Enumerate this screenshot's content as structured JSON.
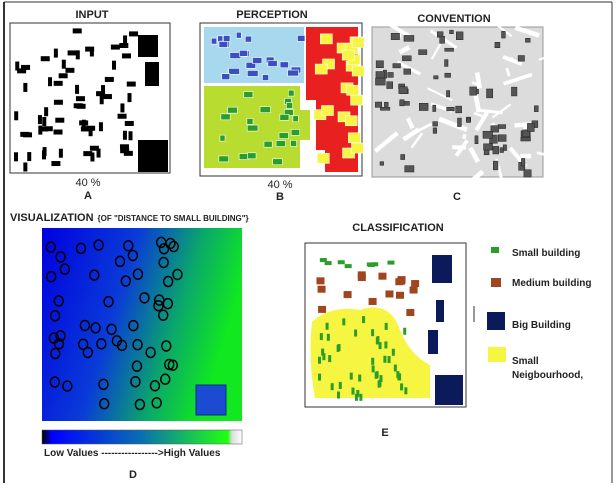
{
  "panels": {
    "input": {
      "title": "INPUT",
      "caption": "40 %",
      "label": "A"
    },
    "perception": {
      "title": "PERCEPTION",
      "caption": "40 %",
      "label": "B"
    },
    "convention": {
      "title": "CONVENTION",
      "label": "C"
    }
  },
  "visualization": {
    "title": "VISUALIZATION",
    "subtitle": "{OF \"DISTANCE TO SMALL BUILDING\"}",
    "scale_caption": "Low Values ----------------->High Values",
    "label": "D"
  },
  "classification": {
    "title": "CLASSIFICATION",
    "label": "E",
    "legend": [
      "Small building",
      "Medium building",
      "Big Building",
      "Small",
      "Neigbourhood,"
    ]
  }
}
